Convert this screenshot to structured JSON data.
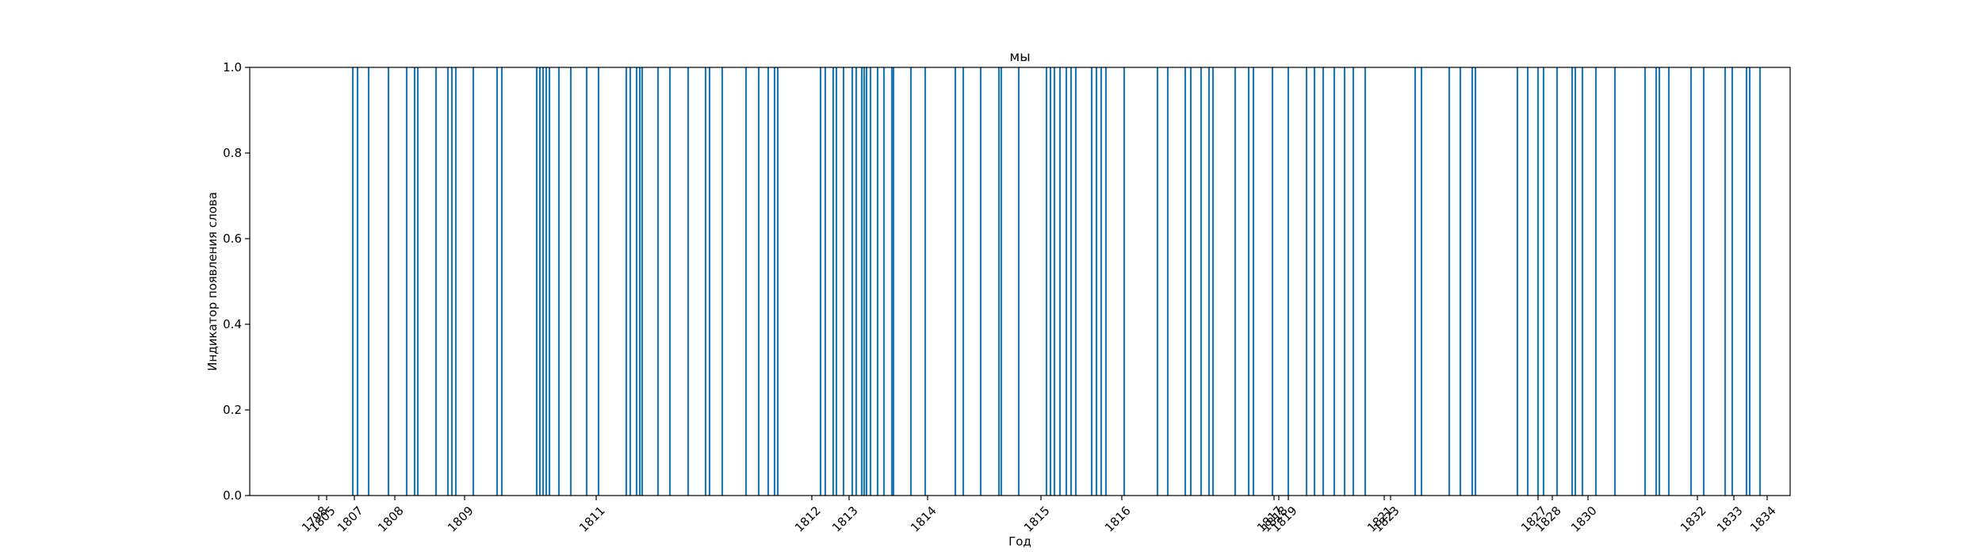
{
  "chart_data": {
    "type": "bar",
    "title": "мы",
    "xlabel": "Год",
    "ylabel": "Индикатор появления слова",
    "ylim": [
      0,
      1
    ],
    "y_ticks": [
      "0.0",
      "0.2",
      "0.4",
      "0.6",
      "0.8",
      "1.0"
    ],
    "x_ticks": [
      "1798",
      "1805",
      "1807",
      "1808",
      "1809",
      "1811",
      "1812",
      "1813",
      "1814",
      "1815",
      "1816",
      "1817",
      "1818",
      "1819",
      "1821",
      "1823",
      "1827",
      "1828",
      "1830",
      "1832",
      "1833",
      "1834"
    ],
    "x_tick_positions": [
      87,
      97,
      132,
      183,
      271,
      437,
      709,
      756,
      855,
      998,
      1100,
      1292,
      1298,
      1310,
      1431,
      1439,
      1625,
      1643,
      1688,
      1826,
      1872,
      1914
    ],
    "occurrences": [
      130,
      136,
      150,
      175,
      198,
      208,
      212,
      235,
      250,
      255,
      260,
      282,
      312,
      318,
      362,
      366,
      370,
      374,
      378,
      390,
      405,
      425,
      440,
      475,
      480,
      488,
      492,
      495,
      515,
      530,
      553,
      575,
      580,
      596,
      626,
      642,
      654,
      662,
      666,
      720,
      726,
      736,
      740,
      749,
      760,
      765,
      772,
      775,
      778,
      783,
      792,
      800,
      810,
      812,
      834,
      852,
      890,
      900,
      922,
      945,
      948,
      970,
      1005,
      1010,
      1015,
      1022,
      1030,
      1036,
      1042,
      1062,
      1068,
      1074,
      1080,
      1103,
      1145,
      1158,
      1180,
      1187,
      1200,
      1210,
      1215,
      1243,
      1260,
      1266,
      1290,
      1310,
      1333,
      1343,
      1354,
      1368,
      1381,
      1392,
      1407,
      1470,
      1478,
      1513,
      1527,
      1542,
      1546,
      1599,
      1612,
      1625,
      1632,
      1649,
      1668,
      1672,
      1681,
      1698,
      1722,
      1760,
      1774,
      1778,
      1790,
      1818,
      1834,
      1861,
      1870,
      1888,
      1892,
      1905
    ],
    "values": [
      1,
      1,
      1,
      1,
      1,
      1,
      1,
      1,
      1,
      1,
      1,
      1,
      1,
      1,
      1,
      1,
      1,
      1,
      1,
      1,
      1,
      1,
      1,
      1,
      1,
      1,
      1,
      1,
      1,
      1,
      1,
      1,
      1,
      1,
      1,
      1,
      1,
      1,
      1,
      1,
      1,
      1,
      1,
      1,
      1,
      1,
      1,
      1,
      1,
      1,
      1,
      1,
      1,
      1,
      1,
      1,
      1,
      1,
      1,
      1,
      1,
      1,
      1,
      1,
      1,
      1,
      1,
      1,
      1,
      1,
      1,
      1,
      1,
      1,
      1,
      1,
      1,
      1,
      1,
      1,
      1,
      1,
      1,
      1,
      1,
      1,
      1,
      1,
      1,
      1,
      1,
      1,
      1,
      1,
      1,
      1,
      1,
      1,
      1,
      1,
      1,
      1,
      1,
      1,
      1,
      1,
      1,
      1,
      1,
      1,
      1,
      1,
      1,
      1,
      1,
      1,
      1,
      1,
      1,
      1
    ],
    "bar_color": "#1f77b4",
    "grid": false,
    "legend": false
  }
}
